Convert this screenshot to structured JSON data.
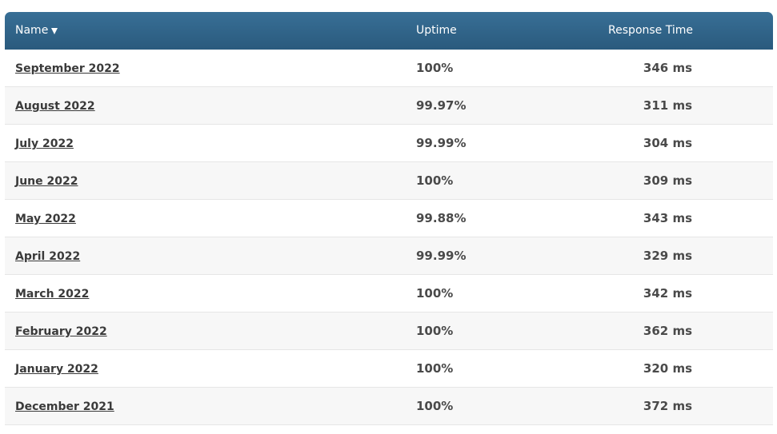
{
  "table": {
    "headers": {
      "name": "Name",
      "uptime": "Uptime",
      "response_time": "Response Time"
    },
    "sort_icon": "triangle-down-icon",
    "header_color": "#2f6488",
    "rows": [
      {
        "name": "September 2022",
        "uptime": "100%",
        "response": "346 ms"
      },
      {
        "name": "August 2022",
        "uptime": "99.97%",
        "response": "311 ms"
      },
      {
        "name": "July 2022",
        "uptime": "99.99%",
        "response": "304 ms"
      },
      {
        "name": "June 2022",
        "uptime": "100%",
        "response": "309 ms"
      },
      {
        "name": "May 2022",
        "uptime": "99.88%",
        "response": "343 ms"
      },
      {
        "name": "April 2022",
        "uptime": "99.99%",
        "response": "329 ms"
      },
      {
        "name": "March 2022",
        "uptime": "100%",
        "response": "342 ms"
      },
      {
        "name": "February 2022",
        "uptime": "100%",
        "response": "362 ms"
      },
      {
        "name": "January 2022",
        "uptime": "100%",
        "response": "320 ms"
      },
      {
        "name": "December 2021",
        "uptime": "100%",
        "response": "372 ms"
      }
    ]
  }
}
